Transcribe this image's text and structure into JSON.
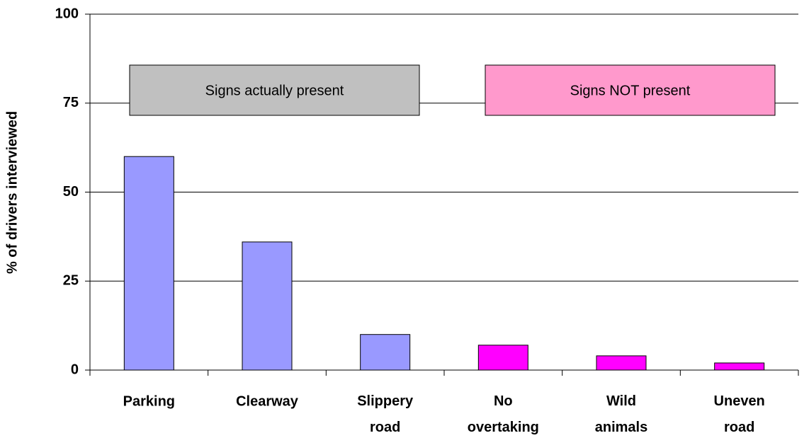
{
  "chart_data": {
    "type": "bar",
    "y_label": "% of drivers interviewed",
    "categories": [
      "Parking",
      "Clearway",
      "Slippery road",
      "No overtaking",
      "Wild animals",
      "Uneven road"
    ],
    "values": [
      60,
      36,
      10,
      7,
      4,
      2
    ],
    "colors": [
      "#9999ff",
      "#9999ff",
      "#9999ff",
      "#ff00ff",
      "#ff00ff",
      "#ff00ff"
    ],
    "ylim": [
      0,
      100
    ],
    "yticks": [
      0,
      25,
      50,
      75,
      100
    ],
    "grid": true,
    "annotations": [
      {
        "text": "Signs actually present",
        "color": "#c0c0c0"
      },
      {
        "text": "Signs NOT present",
        "color": "#ff99cc"
      }
    ]
  }
}
